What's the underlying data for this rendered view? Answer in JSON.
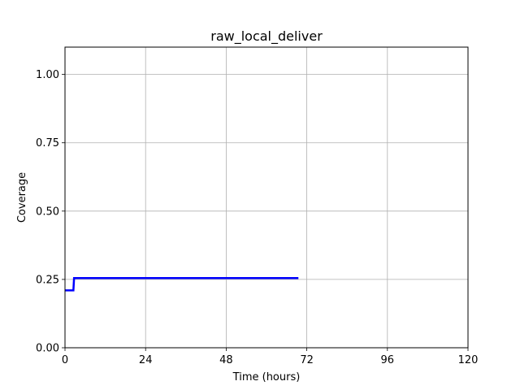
{
  "chart_data": {
    "type": "line",
    "title": "raw_local_deliver",
    "xlabel": "Time (hours)",
    "ylabel": "Coverage",
    "xlim": [
      0,
      120
    ],
    "ylim": [
      0,
      1.1
    ],
    "xticks": [
      0,
      24,
      48,
      72,
      96,
      120
    ],
    "xtick_labels": [
      "0",
      "24",
      "48",
      "72",
      "96",
      "120"
    ],
    "yticks": [
      0,
      0.25,
      0.5,
      0.75,
      1.0
    ],
    "ytick_labels": [
      "0.00",
      "0.25",
      "0.50",
      "0.75",
      "1.00"
    ],
    "grid": true,
    "series": [
      {
        "color": "#0000ff",
        "x": [
          0,
          2.5,
          2.7,
          69.5
        ],
        "y": [
          0.21,
          0.21,
          0.255,
          0.255
        ]
      }
    ]
  }
}
